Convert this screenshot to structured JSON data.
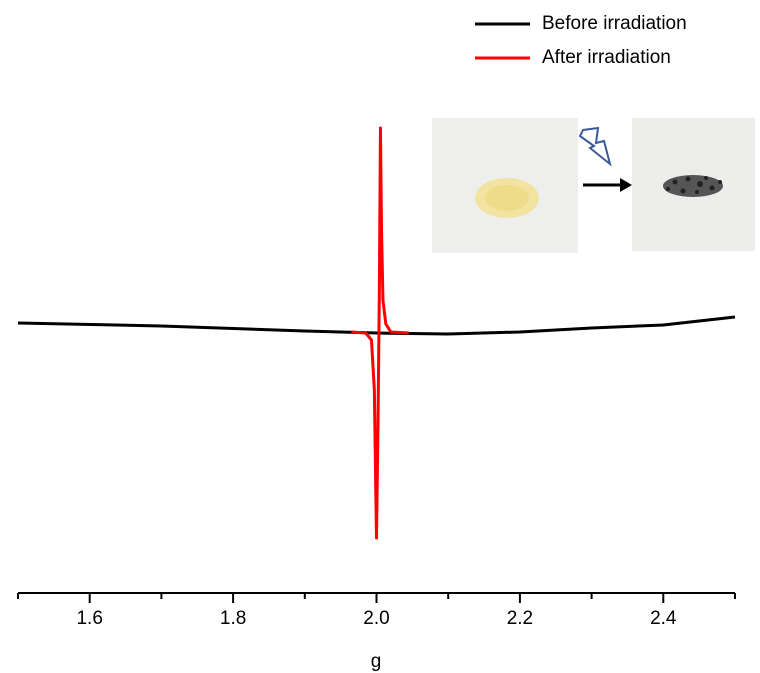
{
  "chart_data": {
    "type": "line",
    "xlabel": "g",
    "xlim": [
      1.5,
      2.5
    ],
    "xticks": [
      1.6,
      1.8,
      {
        "value": 2,
        "label": "2.0"
      },
      2.2,
      2.4
    ],
    "xminorticks": [
      1.5,
      1.7,
      1.9,
      2.1,
      2.3,
      2.5
    ],
    "ylim": [
      -1.2,
      1.2
    ],
    "legend": "top-right",
    "series": [
      {
        "name": "Before irradiation",
        "color": "#000000",
        "x": [
          1.5,
          1.7,
          1.9,
          2.0,
          2.1,
          2.2,
          2.3,
          2.4,
          2.5
        ],
        "values": [
          0.035,
          0.02,
          -0.005,
          -0.015,
          -0.02,
          -0.01,
          0.01,
          0.025,
          0.065
        ]
      },
      {
        "name": "After irradiation",
        "color": "#ff0000",
        "x": [
          1.965,
          1.985,
          1.993,
          1.997,
          1.999,
          2.0,
          2.002,
          2.004,
          2.0055,
          2.007,
          2.009,
          2.013,
          2.02,
          2.045
        ],
        "values": [
          -0.01,
          -0.015,
          -0.05,
          -0.3,
          -0.8,
          -1.04,
          -0.5,
          0.2,
          1.01,
          0.5,
          0.15,
          0.03,
          -0.01,
          -0.015
        ]
      }
    ]
  }
}
